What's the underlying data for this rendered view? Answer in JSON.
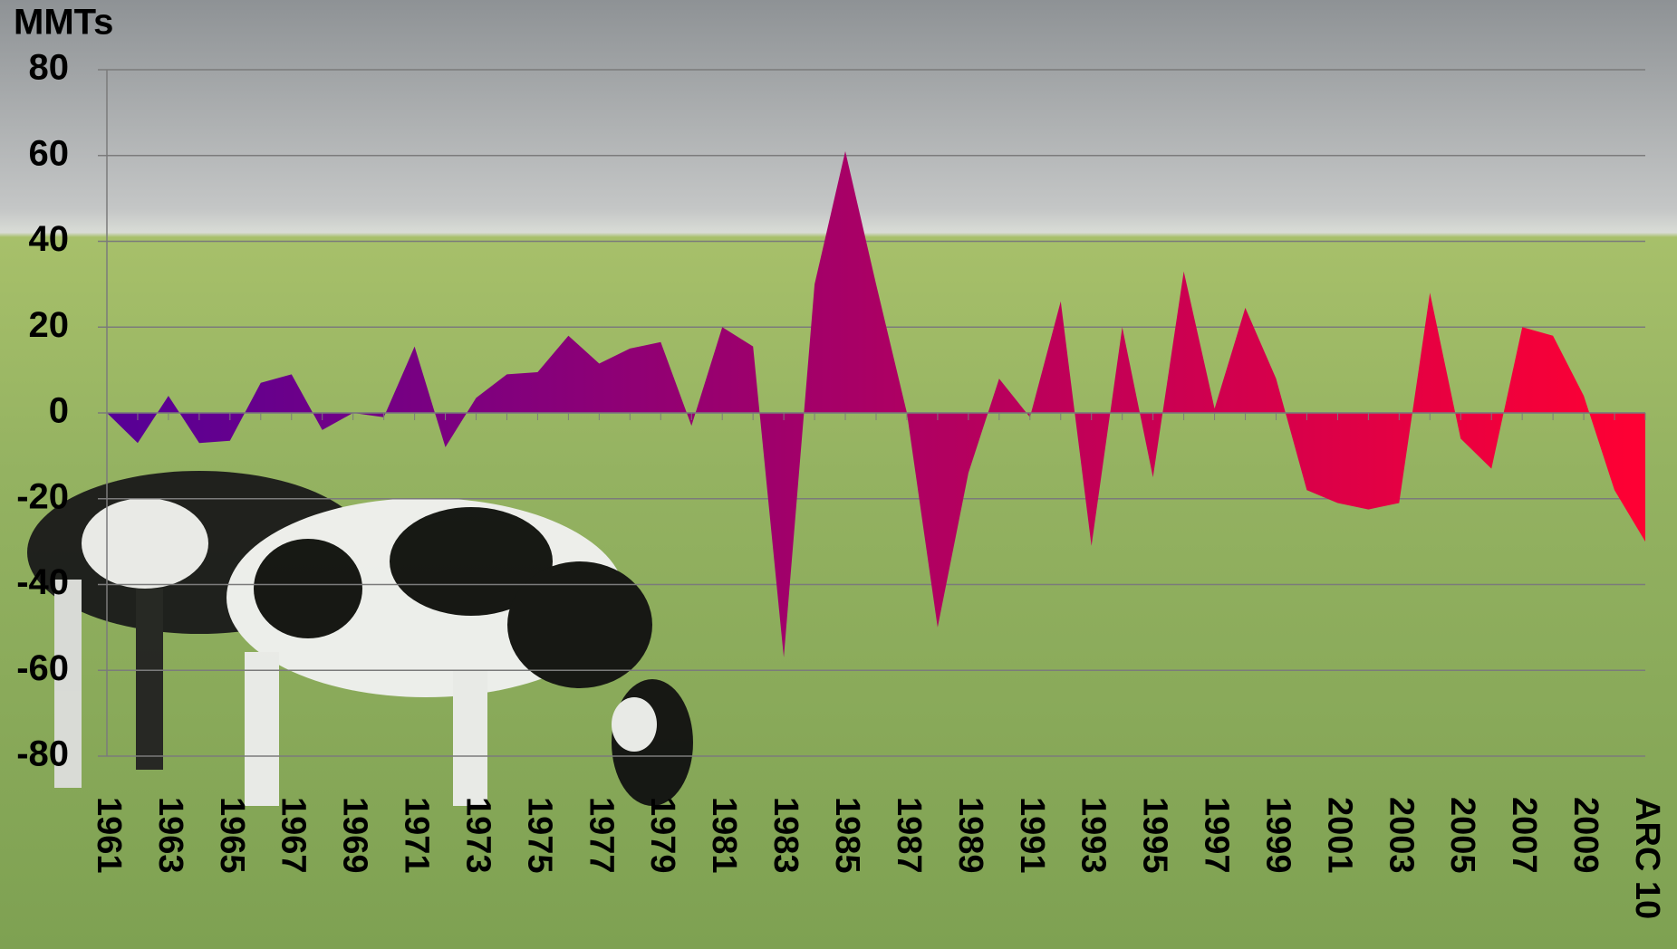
{
  "chart_data": {
    "type": "area",
    "y_label": "MMTs",
    "categories": [
      "1961",
      null,
      "1963",
      null,
      "1965",
      null,
      "1967",
      null,
      "1969",
      null,
      "1971",
      null,
      "1973",
      null,
      "1975",
      null,
      "1977",
      null,
      "1979",
      null,
      "1981",
      null,
      "1983",
      null,
      "1985",
      null,
      "1987",
      null,
      "1989",
      null,
      "1991",
      null,
      "1993",
      null,
      "1995",
      null,
      "1997",
      null,
      "1999",
      null,
      "2001",
      null,
      "2003",
      null,
      "2005",
      null,
      "2007",
      null,
      "2009",
      null,
      "ARC 10"
    ],
    "values": [
      0,
      -7,
      4,
      -7,
      -6.5,
      7,
      9,
      -4,
      0,
      -1,
      15.5,
      -8,
      3.5,
      9,
      9.5,
      18,
      11.5,
      15,
      16.5,
      -3,
      20,
      15.5,
      -57,
      30,
      61,
      30,
      0,
      -50,
      -14,
      8,
      -1,
      26,
      -31,
      20,
      -15,
      33,
      1,
      24.5,
      8,
      -18,
      -21,
      -22.5,
      -21,
      28,
      -6,
      -13,
      20,
      18,
      4,
      -18,
      -30
    ],
    "gradient": [
      "#560096",
      "#ff0033"
    ],
    "ylim": [
      -80,
      80
    ],
    "yticks": [
      -80,
      -60,
      -40,
      -20,
      0,
      20,
      40,
      60,
      80
    ],
    "grid": true
  }
}
